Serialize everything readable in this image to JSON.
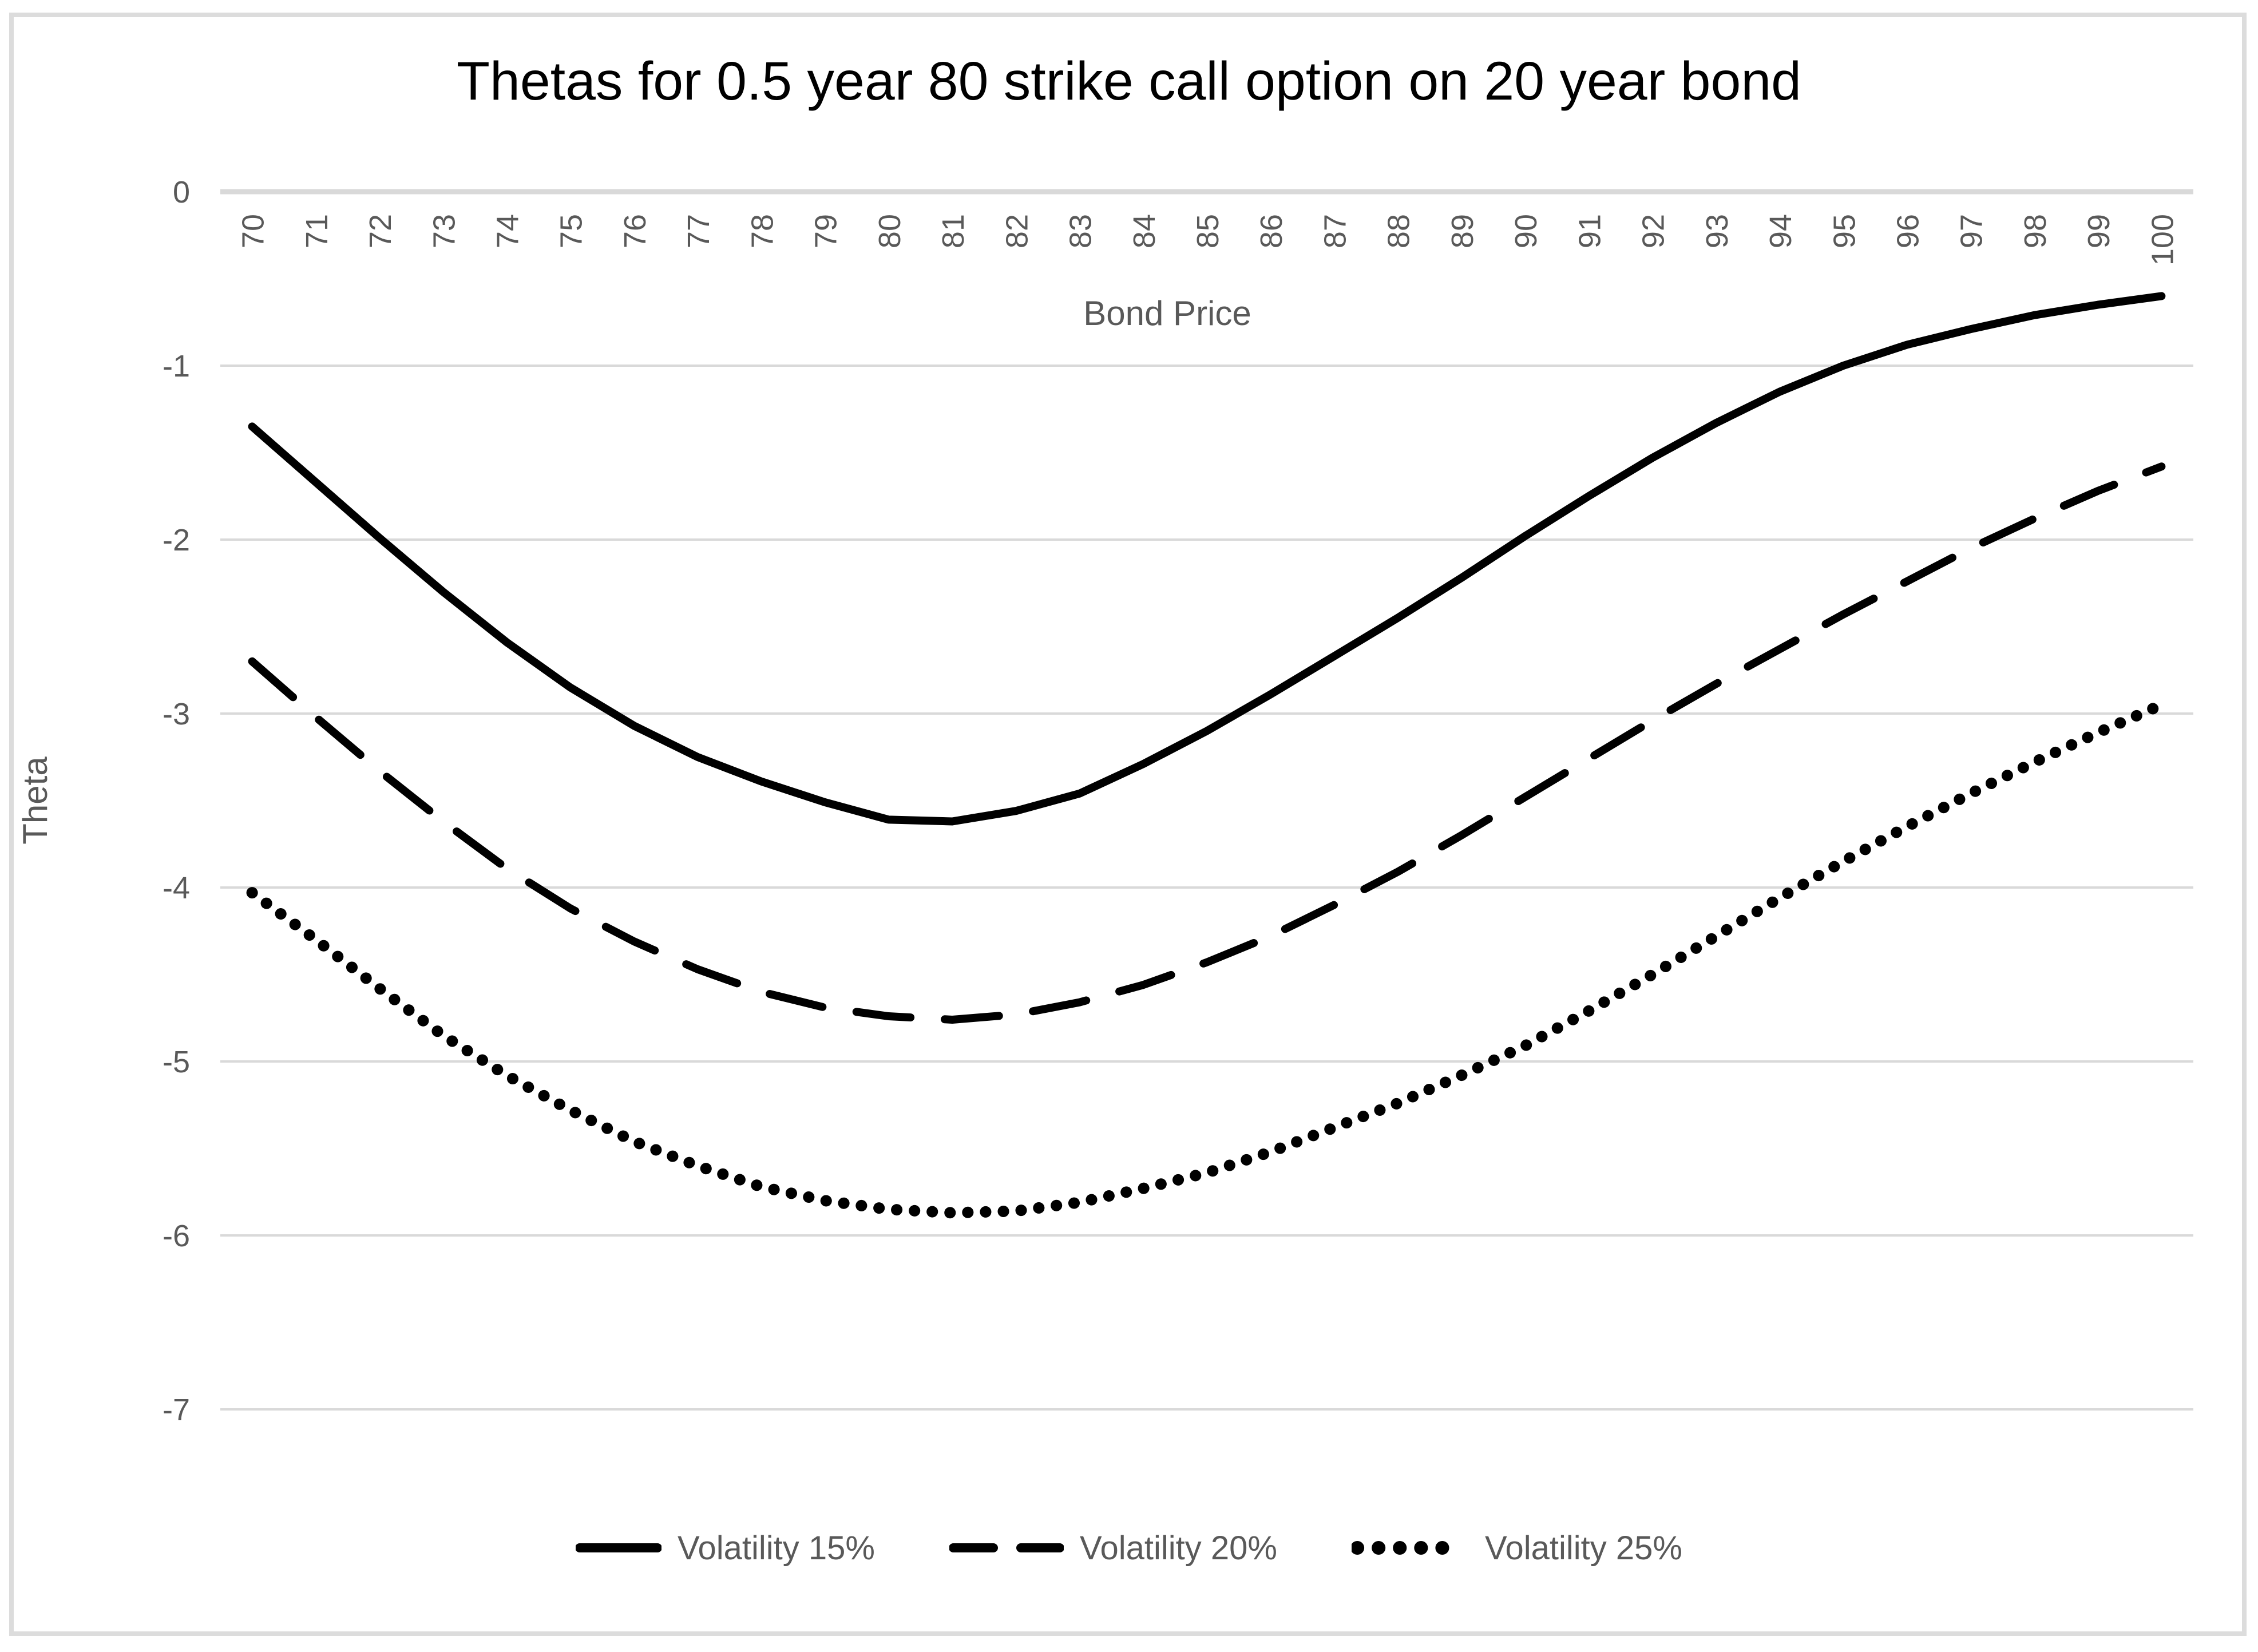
{
  "title": "Thetas for 0.5 year 80 strike call option on 20 year bond",
  "colors": {
    "line": "#000000",
    "axis_text": "#595959",
    "gridline": "#d9d9d9",
    "axis_line": "#d9d9d9",
    "chart_border": "#dcdcdc",
    "background": "#ffffff"
  },
  "chart_data": {
    "type": "line",
    "title": "Thetas for 0.5 year 80 strike call option on 20 year bond",
    "xlabel": "Bond Price",
    "ylabel": "Theta",
    "x": [
      70,
      71,
      72,
      73,
      74,
      75,
      76,
      77,
      78,
      79,
      80,
      81,
      82,
      83,
      84,
      85,
      86,
      87,
      88,
      89,
      90,
      91,
      92,
      93,
      94,
      95,
      96,
      97,
      98,
      99,
      100
    ],
    "ylim": [
      -7,
      0
    ],
    "yticks": [
      0,
      -1,
      -2,
      -3,
      -4,
      -5,
      -6,
      -7
    ],
    "grid": true,
    "legend_position": "bottom",
    "series": [
      {
        "name": "Volatility 15%",
        "style": "solid",
        "color": "#000000",
        "values": [
          -1.35,
          -1.67,
          -1.99,
          -2.3,
          -2.59,
          -2.85,
          -3.07,
          -3.25,
          -3.39,
          -3.51,
          -3.61,
          -3.62,
          -3.56,
          -3.46,
          -3.29,
          -3.1,
          -2.89,
          -2.67,
          -2.45,
          -2.22,
          -1.98,
          -1.75,
          -1.53,
          -1.33,
          -1.15,
          -1.0,
          -0.88,
          -0.79,
          -0.71,
          -0.65,
          -0.6
        ]
      },
      {
        "name": "Volatility 20%",
        "style": "dashed",
        "color": "#000000",
        "values": [
          -2.7,
          -3.02,
          -3.33,
          -3.62,
          -3.89,
          -4.12,
          -4.31,
          -4.47,
          -4.6,
          -4.69,
          -4.74,
          -4.76,
          -4.73,
          -4.66,
          -4.56,
          -4.43,
          -4.28,
          -4.1,
          -3.91,
          -3.7,
          -3.48,
          -3.26,
          -3.04,
          -2.83,
          -2.63,
          -2.43,
          -2.24,
          -2.05,
          -1.88,
          -1.72,
          -1.58
        ]
      },
      {
        "name": "Volatility 25%",
        "style": "dotted",
        "color": "#000000",
        "values": [
          -4.03,
          -4.3,
          -4.58,
          -4.85,
          -5.08,
          -5.28,
          -5.46,
          -5.6,
          -5.72,
          -5.8,
          -5.85,
          -5.87,
          -5.86,
          -5.81,
          -5.73,
          -5.64,
          -5.52,
          -5.38,
          -5.24,
          -5.08,
          -4.91,
          -4.71,
          -4.5,
          -4.28,
          -4.06,
          -3.85,
          -3.65,
          -3.46,
          -3.28,
          -3.11,
          -2.95
        ]
      }
    ]
  }
}
